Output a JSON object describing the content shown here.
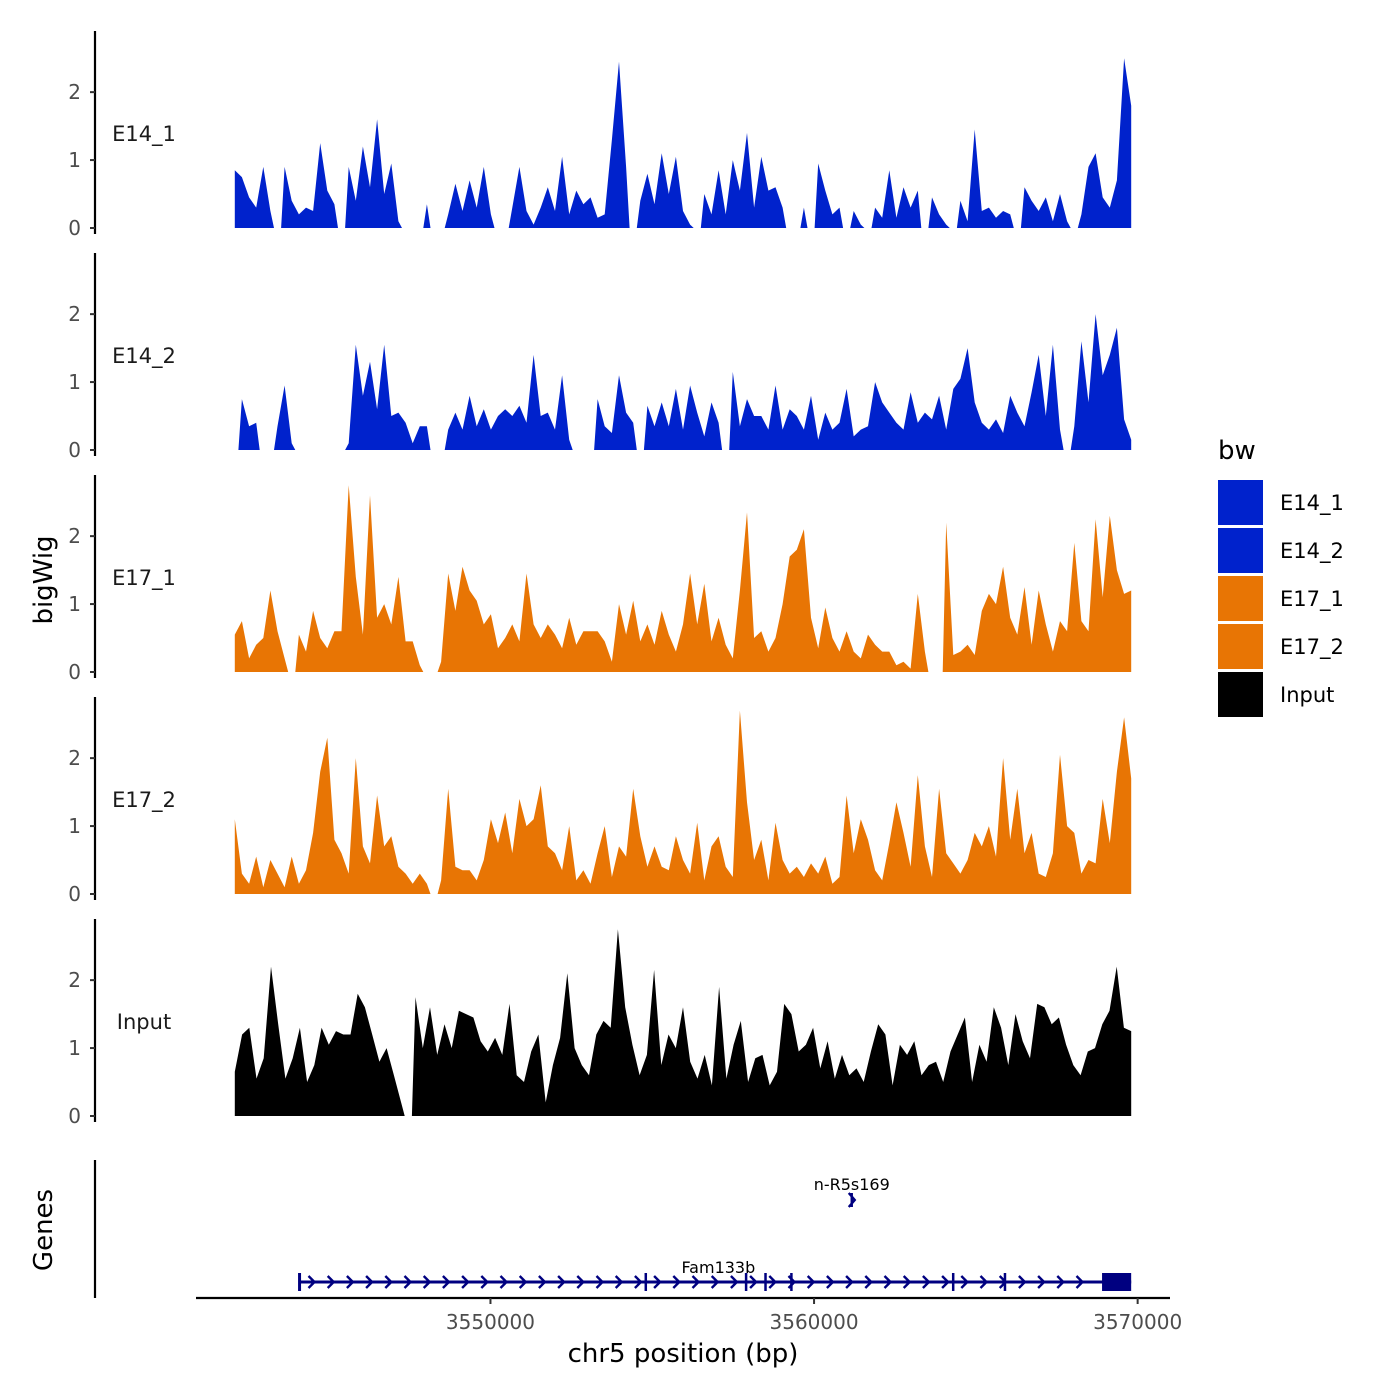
{
  "chart_data": {
    "type": "area",
    "title": "",
    "ylabel": "bigWig",
    "gene_panel_label": "Genes",
    "xlabel": "chr5 position (bp)",
    "xlim": [
      3540900,
      3571000
    ],
    "ylim": [
      0,
      2.9
    ],
    "x_ticks": [
      3550000,
      3560000,
      3570000
    ],
    "x_tick_labels": [
      "3550000",
      "3560000",
      "3570000"
    ],
    "y_ticks": [
      0,
      1,
      2
    ],
    "y_tick_labels": [
      "0",
      "1",
      "2"
    ],
    "signal_range": [
      3542100,
      3569800
    ],
    "legend": {
      "title": "bw",
      "entries": [
        {
          "label": "E14_1",
          "color": "#0022CC"
        },
        {
          "label": "E14_2",
          "color": "#0022CC"
        },
        {
          "label": "E17_1",
          "color": "#E87504"
        },
        {
          "label": "E17_2",
          "color": "#E87504"
        },
        {
          "label": "Input",
          "color": "#000000"
        }
      ]
    },
    "tracks": [
      {
        "name": "E14_1",
        "color": "#0022CC",
        "values": [
          0.85,
          0.75,
          0.45,
          0.3,
          0.9,
          0.25,
          0,
          0.9,
          0.4,
          0.2,
          0.3,
          0.25,
          1.25,
          0.55,
          0.35,
          0,
          0.9,
          0.4,
          1.2,
          0.6,
          1.6,
          0.5,
          0.95,
          0.1,
          0,
          0,
          0,
          0.35,
          0,
          0,
          0.2,
          0.65,
          0.25,
          0.7,
          0.3,
          0.9,
          0.2,
          0,
          0,
          0.3,
          0.9,
          0.25,
          0.05,
          0.3,
          0.6,
          0.25,
          1.05,
          0.2,
          0.55,
          0.35,
          0.45,
          0.15,
          0.2,
          1.3,
          2.45,
          0.9,
          0,
          0.4,
          0.8,
          0.35,
          1.1,
          0.5,
          1.05,
          0.25,
          0.05,
          0,
          0.5,
          0.2,
          0.85,
          0.2,
          1.0,
          0.55,
          1.4,
          0.3,
          1.05,
          0.55,
          0.6,
          0.3,
          0,
          0,
          0.3,
          0,
          0.95,
          0.55,
          0.2,
          0.3,
          0,
          0.25,
          0.05,
          0,
          0.3,
          0.15,
          0.85,
          0.15,
          0.6,
          0.3,
          0.55,
          0,
          0.45,
          0.2,
          0.05,
          0,
          0.4,
          0.1,
          1.45,
          0.25,
          0.3,
          0.15,
          0.25,
          0.2,
          0,
          0.6,
          0.4,
          0.25,
          0.45,
          0.1,
          0.5,
          0.1,
          0,
          0.2,
          0.9,
          1.1,
          0.45,
          0.3,
          0.7,
          2.5,
          1.8
        ]
      },
      {
        "name": "E14_2",
        "color": "#0022CC",
        "values": [
          0,
          0.75,
          0.35,
          0.4,
          0,
          0,
          0.35,
          0.95,
          0.1,
          0,
          0,
          0,
          0,
          0,
          0,
          0,
          0.1,
          1.55,
          0.8,
          1.3,
          0.6,
          1.55,
          0.5,
          0.55,
          0.4,
          0.1,
          0.35,
          0.35,
          0,
          0,
          0.3,
          0.55,
          0.3,
          0.8,
          0.35,
          0.6,
          0.3,
          0.5,
          0.6,
          0.5,
          0.65,
          0.4,
          1.4,
          0.5,
          0.55,
          0.3,
          1.1,
          0.15,
          0,
          0,
          0,
          0.75,
          0.35,
          0.25,
          1.1,
          0.55,
          0.4,
          0,
          0.65,
          0.35,
          0.7,
          0.35,
          0.9,
          0.3,
          0.95,
          0.55,
          0.2,
          0.7,
          0.4,
          0,
          1.15,
          0.35,
          0.75,
          0.5,
          0.5,
          0.3,
          0.95,
          0.3,
          0.6,
          0.5,
          0.3,
          0.8,
          0.15,
          0.55,
          0.3,
          0.4,
          0.9,
          0.2,
          0.3,
          0.35,
          1.0,
          0.7,
          0.55,
          0.4,
          0.3,
          0.85,
          0.4,
          0.55,
          0.45,
          0.8,
          0.3,
          0.9,
          1.05,
          1.5,
          0.7,
          0.4,
          0.3,
          0.45,
          0.25,
          0.8,
          0.55,
          0.35,
          0.85,
          1.4,
          0.5,
          1.55,
          0.3,
          0,
          0.35,
          1.6,
          0.7,
          2.0,
          1.1,
          1.4,
          1.8,
          0.45,
          0.15
        ]
      },
      {
        "name": "E17_1",
        "color": "#E87504",
        "values": [
          0.55,
          0.75,
          0.2,
          0.4,
          0.5,
          1.2,
          0.6,
          0.2,
          0,
          0.55,
          0.3,
          0.9,
          0.5,
          0.35,
          0.6,
          0.6,
          2.75,
          1.4,
          0.55,
          2.6,
          0.8,
          1.0,
          0.7,
          1.4,
          0.45,
          0.45,
          0.1,
          0,
          0,
          0.15,
          1.45,
          0.9,
          1.55,
          1.2,
          1.05,
          0.7,
          0.85,
          0.35,
          0.5,
          0.7,
          0.45,
          1.45,
          0.7,
          0.5,
          0.7,
          0.55,
          0.35,
          0.8,
          0.4,
          0.6,
          0.6,
          0.6,
          0.45,
          0.15,
          1.0,
          0.55,
          1.05,
          0.45,
          0.7,
          0.4,
          0.9,
          0.55,
          0.3,
          0.7,
          1.45,
          0.7,
          1.3,
          0.45,
          0.8,
          0.4,
          0.2,
          1.2,
          2.35,
          0.5,
          0.6,
          0.3,
          0.5,
          1.0,
          1.7,
          1.8,
          2.1,
          0.8,
          0.35,
          0.95,
          0.5,
          0.3,
          0.6,
          0.3,
          0.2,
          0.55,
          0.4,
          0.3,
          0.3,
          0.1,
          0.15,
          0.05,
          1.15,
          0.3,
          0,
          0,
          2.2,
          0.25,
          0.3,
          0.4,
          0.25,
          0.9,
          1.15,
          1.0,
          1.55,
          0.8,
          0.55,
          1.25,
          0.4,
          1.2,
          0.7,
          0.3,
          0.75,
          0.6,
          1.9,
          0.75,
          0.6,
          2.25,
          1.1,
          2.3,
          1.5,
          1.15,
          1.2
        ]
      },
      {
        "name": "E17_2",
        "color": "#E87504",
        "values": [
          1.1,
          0.3,
          0.15,
          0.55,
          0.1,
          0.5,
          0.3,
          0.1,
          0.55,
          0.15,
          0.35,
          0.9,
          1.8,
          2.3,
          0.8,
          0.6,
          0.3,
          2.0,
          0.7,
          0.45,
          1.45,
          0.7,
          0.85,
          0.4,
          0.3,
          0.15,
          0.3,
          0.15,
          0,
          0.2,
          1.55,
          0.4,
          0.35,
          0.35,
          0.2,
          0.5,
          1.1,
          0.75,
          1.2,
          0.6,
          1.4,
          1.0,
          1.1,
          1.6,
          0.7,
          0.6,
          0.35,
          1.0,
          0.2,
          0.35,
          0.15,
          0.6,
          1.0,
          0.25,
          0.7,
          0.55,
          1.55,
          0.85,
          0.4,
          0.7,
          0.4,
          0.35,
          0.85,
          0.5,
          0.3,
          1.05,
          0.2,
          0.7,
          0.85,
          0.4,
          0.25,
          2.7,
          1.35,
          0.5,
          0.8,
          0.2,
          1.05,
          0.5,
          0.3,
          0.4,
          0.25,
          0.45,
          0.3,
          0.55,
          0.15,
          0.25,
          1.45,
          0.6,
          1.1,
          0.8,
          0.35,
          0.2,
          0.75,
          1.35,
          0.9,
          0.4,
          1.75,
          0.7,
          0.25,
          1.55,
          0.6,
          0.45,
          0.3,
          0.5,
          0.9,
          0.7,
          1.0,
          0.55,
          2.0,
          0.8,
          1.55,
          0.6,
          0.9,
          0.3,
          0.25,
          0.6,
          2.05,
          1.0,
          0.9,
          0.3,
          0.5,
          0.45,
          1.4,
          0.75,
          1.8,
          2.6,
          1.7
        ]
      },
      {
        "name": "Input",
        "color": "#000000",
        "values": [
          0.65,
          1.2,
          1.3,
          0.55,
          0.85,
          2.2,
          1.35,
          0.55,
          0.85,
          1.3,
          0.5,
          0.75,
          1.3,
          1.05,
          1.25,
          1.2,
          1.2,
          1.8,
          1.6,
          1.2,
          0.8,
          1.0,
          0.6,
          0.2,
          0,
          1.75,
          1.0,
          1.6,
          0.9,
          1.35,
          1.0,
          1.55,
          1.5,
          1.45,
          1.1,
          0.95,
          1.15,
          0.9,
          1.65,
          0.6,
          0.5,
          0.95,
          1.2,
          0.2,
          0.75,
          1.15,
          2.1,
          1.0,
          0.75,
          0.6,
          1.2,
          1.4,
          1.3,
          2.75,
          1.6,
          1.05,
          0.6,
          0.9,
          2.15,
          0.75,
          1.2,
          1.0,
          1.6,
          0.8,
          0.55,
          0.9,
          0.45,
          1.9,
          0.55,
          1.05,
          1.4,
          0.5,
          0.85,
          0.9,
          0.45,
          0.65,
          1.65,
          1.5,
          0.95,
          1.05,
          1.3,
          0.7,
          1.1,
          0.55,
          0.9,
          0.6,
          0.7,
          0.5,
          0.95,
          1.35,
          1.2,
          0.45,
          1.05,
          0.9,
          1.1,
          0.6,
          0.75,
          0.8,
          0.5,
          0.95,
          1.2,
          1.45,
          0.5,
          1.05,
          0.8,
          1.6,
          1.3,
          0.75,
          1.5,
          1.1,
          0.85,
          1.65,
          1.6,
          1.35,
          1.45,
          1.05,
          0.75,
          0.6,
          0.95,
          1.0,
          1.35,
          1.55,
          2.2,
          1.3,
          1.25
        ]
      }
    ],
    "genes": [
      {
        "name": "Fam133b",
        "start": 3544100,
        "end": 3569800,
        "strand": "+",
        "exon_boundaries": [
          3554800,
          3557900,
          3558500,
          3559300,
          3564300,
          3565900
        ],
        "terminal_block": [
          3568900,
          3569800
        ]
      },
      {
        "name": "n-R5s169",
        "start": 3561050,
        "end": 3561280,
        "strand": "+"
      }
    ]
  }
}
